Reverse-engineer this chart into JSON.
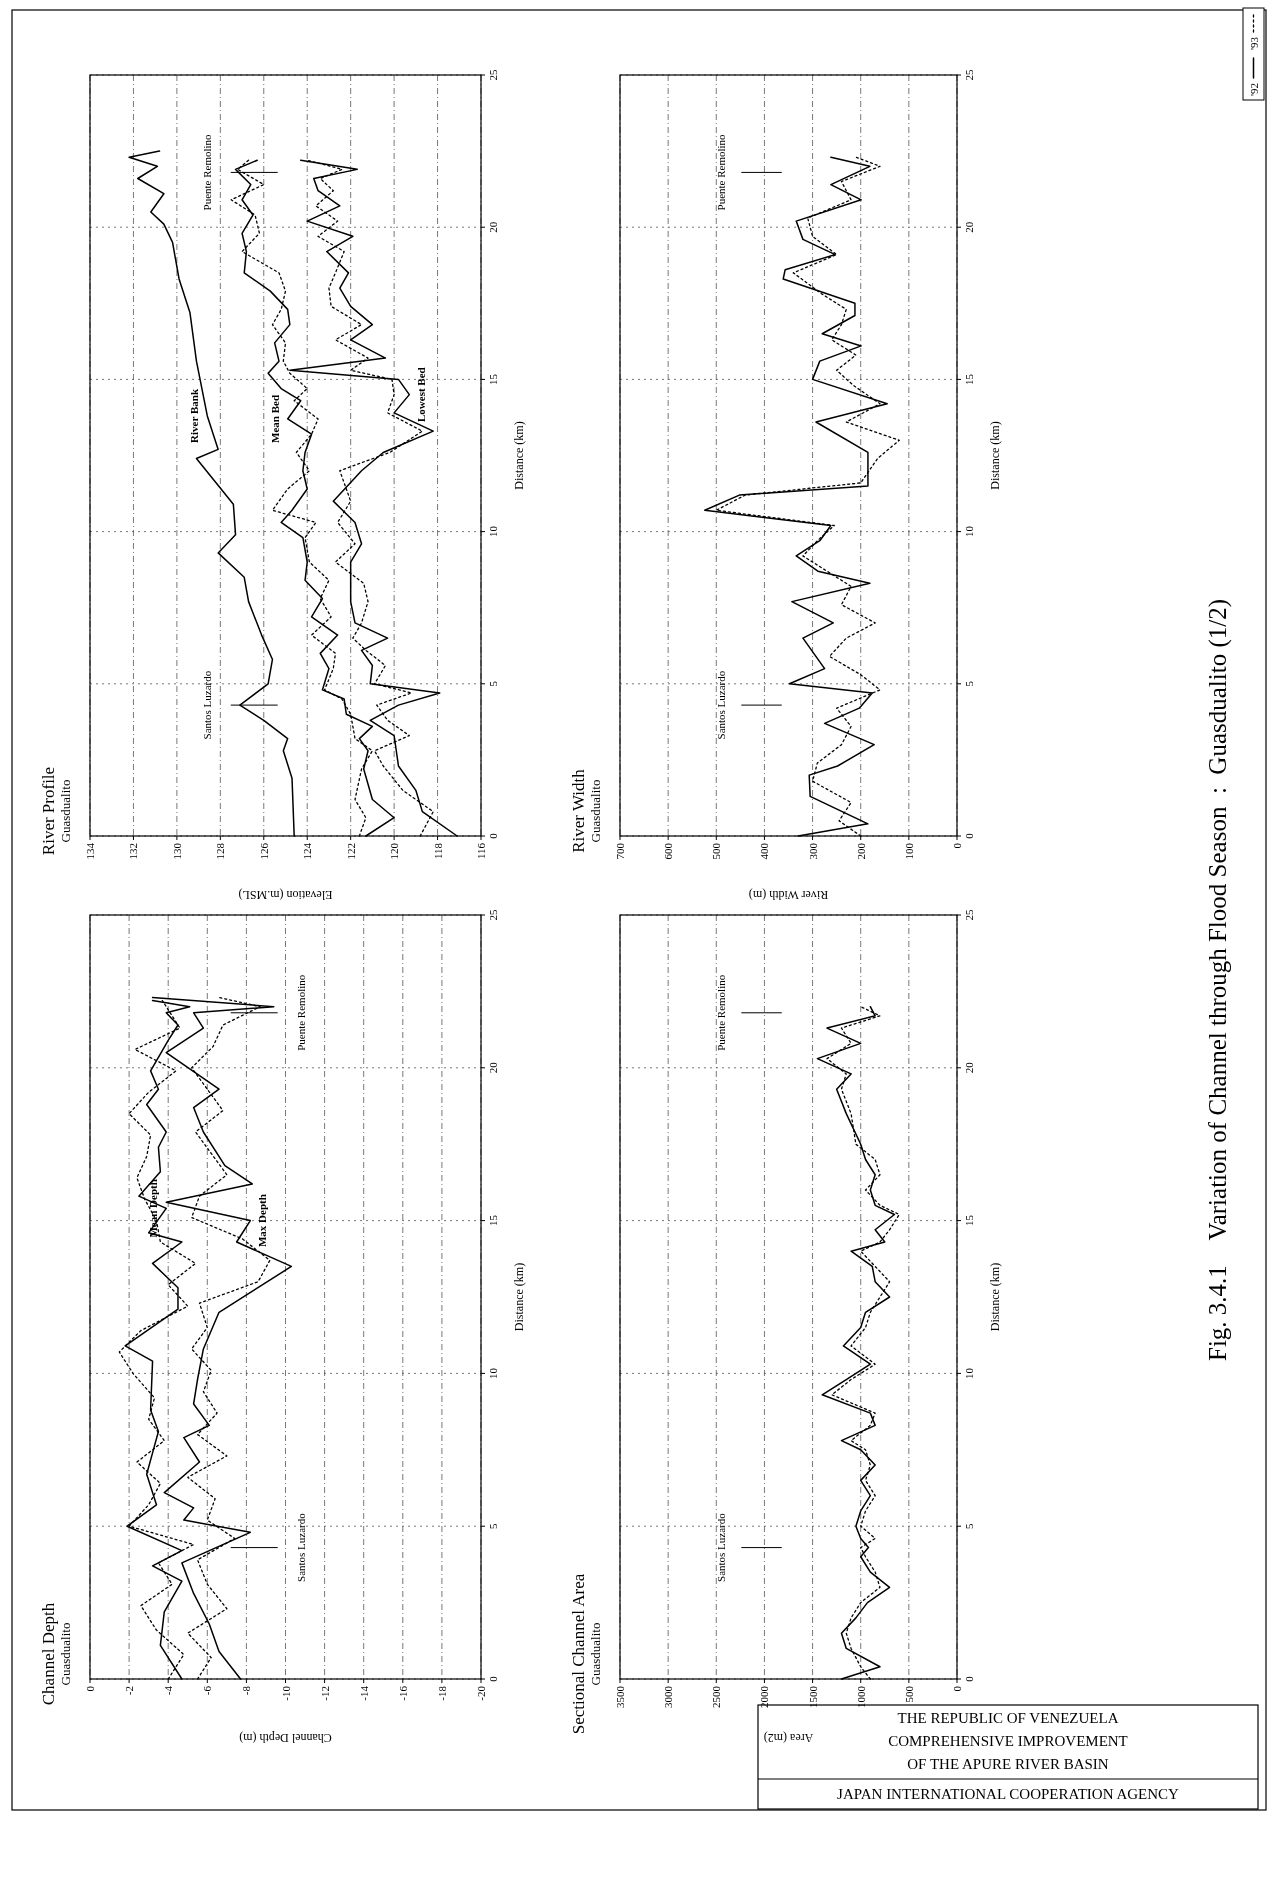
{
  "chart_data": [
    {
      "type": "line",
      "title": "River Profile",
      "subtitle": "Guasdualito",
      "ylabel": "Distance (km)",
      "xlabel": "Elevation (m.MSL)",
      "ylim": [
        0,
        25
      ],
      "yticks": [
        0,
        5,
        10,
        15,
        20,
        25
      ],
      "xlim": [
        134,
        116
      ],
      "xticks": [
        116,
        118,
        120,
        122,
        124,
        126,
        128,
        130,
        132,
        134
      ],
      "grid": true,
      "series": [
        {
          "name": "River Bank",
          "color": "#000000",
          "line_style": "solid",
          "values": [
            0,
            1.9,
            2.8,
            3.2,
            3.8,
            4.3,
            5,
            5.8,
            6.6,
            7.7,
            8.5,
            9.3,
            9.9,
            10.9,
            12.4,
            12.7,
            13.8,
            15.6,
            17.2,
            18.3,
            19.5,
            20.1,
            20.5,
            21.1,
            21.6,
            22,
            22.3,
            22.5
          ],
          "x": [
            124.6,
            124.7,
            125.1,
            124.9,
            126,
            127.1,
            125.8,
            125.6,
            126.1,
            126.7,
            126.9,
            128.1,
            127.3,
            127.4,
            129.1,
            128.1,
            128.6,
            129.1,
            129.4,
            129.9,
            130.2,
            130.6,
            131.2,
            130.6,
            131.8,
            130.9,
            132.2,
            130.8
          ]
        },
        {
          "name": "Mean Bed",
          "color": "#000000",
          "line_style": "solid",
          "values": [
            0,
            0.6,
            1.2,
            2.2,
            2.8,
            3.2,
            3.6,
            4.0,
            4.5,
            4.8,
            5.5,
            6.0,
            6.6,
            7.2,
            7.8,
            8.4,
            9.0,
            9.8,
            10.3,
            10.7,
            11.4,
            12,
            12.6,
            13.2,
            13.7,
            14.3,
            14.7,
            15.2,
            15.6,
            16.2,
            16.8,
            17.3,
            17.9,
            18.5,
            19.2,
            19.8,
            20.4,
            20.9,
            21.4,
            21.9,
            22.2
          ],
          "x": [
            121.3,
            120.0,
            121.0,
            121.4,
            121.2,
            121.6,
            121.0,
            122.2,
            122.3,
            123.3,
            123.0,
            123.4,
            122.6,
            123.8,
            123.3,
            124.1,
            124.0,
            124.2,
            125.2,
            124.7,
            124.0,
            124.2,
            124.1,
            123.8,
            124.9,
            124.3,
            125.2,
            125.8,
            125.3,
            125.5,
            124.8,
            124.9,
            125.7,
            126.9,
            126.8,
            127.0,
            126.5,
            127.0,
            126.6,
            127.3,
            126.3
          ]
        },
        {
          "color": "#000000",
          "line_style": "dotted",
          "values": [
            0,
            0.6,
            1.2,
            2.2,
            2.8,
            3.2,
            3.6,
            4.0,
            4.5,
            4.8,
            5.5,
            6.0,
            6.6,
            7.2,
            7.8,
            8.4,
            9.0,
            9.8,
            10.3,
            10.7,
            11.4,
            12,
            12.6,
            13.2,
            13.7,
            14.3,
            14.7,
            15.2,
            15.6,
            16.2,
            16.8,
            17.3,
            17.9,
            18.5,
            19.2,
            19.8,
            20.4,
            20.9,
            21.4,
            21.9,
            22.2
          ],
          "x": [
            121.6,
            121.3,
            121.8,
            121.5,
            121.0,
            121.8,
            121.9,
            122.0,
            122.4,
            123.2,
            122.8,
            122.7,
            123.8,
            122.9,
            123.4,
            123.0,
            123.9,
            124.1,
            123.6,
            125.6,
            124.9,
            123.9,
            124.5,
            123.8,
            123.5,
            124.6,
            124.0,
            124.8,
            125.1,
            125.0,
            125.6,
            125.2,
            125.0,
            125.3,
            127.0,
            126.2,
            126.4,
            127.5,
            126.0,
            127.2,
            126.7
          ]
        },
        {
          "name": "Lowest Bed",
          "color": "#000000",
          "line_style": "solid",
          "values": [
            0,
            0.8,
            1.5,
            2.3,
            2.8,
            3.3,
            3.8,
            4.3,
            4.7,
            5.0,
            5.6,
            6.1,
            6.5,
            7.0,
            7.7,
            8.3,
            9.0,
            9.6,
            10.3,
            11.0,
            12.0,
            12.6,
            13.3,
            13.9,
            14.5,
            15.0,
            15.3,
            15.7,
            16.3,
            16.8,
            17.4,
            18.0,
            18.5,
            19.2,
            19.7,
            20.2,
            20.7,
            21.2,
            21.6,
            21.9,
            22.2
          ],
          "x": [
            117.1,
            118.7,
            119.0,
            119.8,
            119.9,
            120.0,
            121.1,
            119.8,
            117.9,
            121.1,
            121.0,
            121.5,
            120.3,
            121.8,
            122.0,
            122.0,
            122.0,
            121.5,
            121.8,
            122.8,
            121.5,
            120.5,
            118.2,
            120.0,
            119.3,
            119.8,
            124.8,
            120.4,
            122.0,
            121.0,
            122.0,
            122.5,
            122.1,
            123.1,
            121.9,
            124.0,
            122.5,
            123.5,
            123.7,
            121.7,
            124.3
          ]
        },
        {
          "color": "#000000",
          "line_style": "dotted",
          "values": [
            0,
            0.8,
            1.5,
            2.3,
            2.8,
            3.3,
            3.8,
            4.3,
            4.7,
            5.0,
            5.6,
            6.1,
            6.5,
            7.0,
            7.7,
            8.3,
            9.0,
            9.6,
            10.3,
            11.0,
            12.0,
            12.6,
            13.3,
            13.9,
            14.5,
            15.0,
            15.3,
            15.7,
            16.3,
            16.8,
            17.4,
            18.0,
            18.5,
            19.2,
            19.7,
            20.2,
            20.7,
            21.2,
            21.6,
            21.9,
            22.2
          ],
          "x": [
            118.8,
            118.2,
            119.6,
            120.5,
            120.9,
            119.3,
            120.3,
            120.8,
            119.2,
            120.9,
            120.4,
            121.3,
            121.9,
            121.5,
            121.2,
            121.4,
            122.7,
            121.8,
            122.6,
            122.0,
            122.5,
            120.2,
            118.7,
            120.3,
            120.0,
            120.1,
            122.0,
            121.2,
            122.7,
            121.5,
            122.9,
            123.0,
            122.7,
            122.3,
            123.5,
            122.6,
            123.6,
            122.8,
            123.4,
            122.4,
            124.0
          ]
        }
      ],
      "ref_lines": [
        {
          "axis": "y",
          "value": 4.3,
          "label": "Santos Luzardo"
        },
        {
          "axis": "y",
          "value": 21.8,
          "label": "Puente Remolino"
        }
      ]
    },
    {
      "type": "line",
      "title": "River Width",
      "subtitle": "Guasdualito",
      "ylabel": "Distance (km)",
      "xlabel": "River Width (m)",
      "ylim": [
        0,
        25
      ],
      "yticks": [
        0,
        5,
        10,
        15,
        20,
        25
      ],
      "xlim": [
        700,
        0
      ],
      "xticks": [
        0,
        100,
        200,
        300,
        400,
        500,
        600,
        700
      ],
      "grid": true,
      "legend": "top right",
      "series": [
        {
          "name": "'92",
          "color": "#000000",
          "line_style": "solid",
          "values": [
            0,
            0.4,
            1.3,
            2.0,
            2.3,
            3.0,
            3.7,
            4.2,
            4.7,
            5.0,
            5.5,
            6.5,
            7.0,
            7.7,
            8.3,
            8.7,
            9.2,
            9.7,
            10.2,
            10.7,
            11.2,
            11.5,
            12.6,
            13.6,
            14.2,
            15.0,
            15.6,
            16.1,
            16.5,
            17.1,
            17.5,
            18.3,
            18.6,
            19.1,
            19.6,
            20.2,
            20.9,
            21.4,
            22.0,
            22.3
          ],
          "x": [
            330,
            185,
            305,
            307,
            248,
            172,
            275,
            203,
            176,
            348,
            275,
            320,
            257,
            343,
            181,
            289,
            334,
            285,
            262,
            524,
            452,
            185,
            185,
            293,
            145,
            300,
            285,
            199,
            280,
            212,
            212,
            361,
            357,
            253,
            320,
            334,
            199,
            262,
            181,
            262
          ]
        },
        {
          "name": "'93",
          "color": "#000000",
          "line_style": "dotted",
          "values": [
            0,
            0.5,
            1.1,
            1.8,
            2.4,
            3.0,
            3.6,
            4.2,
            4.8,
            5.3,
            5.9,
            6.5,
            7.0,
            7.6,
            8.2,
            8.7,
            9.2,
            9.7,
            10.2,
            10.7,
            11.2,
            11.6,
            12.4,
            13.0,
            13.6,
            14.2,
            14.8,
            15.3,
            15.8,
            16.3,
            16.8,
            17.3,
            17.8,
            18.5,
            19.1,
            19.7,
            20.3,
            20.9,
            21.5,
            22.0,
            22.3
          ],
          "x": [
            200,
            245,
            220,
            300,
            290,
            240,
            220,
            250,
            160,
            200,
            265,
            230,
            170,
            240,
            220,
            270,
            320,
            290,
            255,
            500,
            440,
            200,
            165,
            120,
            230,
            160,
            215,
            250,
            210,
            260,
            240,
            230,
            280,
            340,
            250,
            300,
            310,
            220,
            240,
            160,
            210
          ]
        }
      ],
      "ref_lines": [
        {
          "axis": "y",
          "value": 4.3,
          "label": "Santos Luzardo"
        },
        {
          "axis": "y",
          "value": 21.8,
          "label": "Puente Remolino"
        }
      ]
    },
    {
      "type": "line",
      "title": "Channel Depth",
      "subtitle": "Guasdualito",
      "ylabel": "Distance (km)",
      "xlabel": "Channel Depth (m)",
      "ylim": [
        0,
        25
      ],
      "yticks": [
        0,
        5,
        10,
        15,
        20,
        25
      ],
      "xlim": [
        0,
        -20
      ],
      "xticks": [
        -20,
        -18,
        -16,
        -14,
        -12,
        -10,
        -8,
        -6,
        -4,
        -2,
        0
      ],
      "grid": true,
      "series": [
        {
          "name": "Mean Depth",
          "color": "#000000",
          "line_style": "solid",
          "values": [
            0,
            1.1,
            2.2,
            3.2,
            3.7,
            4.2,
            5,
            5.7,
            6.7,
            7.4,
            8.1,
            8.8,
            10.4,
            10.9,
            12.1,
            12.8,
            13.6,
            14.3,
            14.6,
            15.4,
            15.8,
            16.6,
            17.4,
            17.9,
            18.8,
            19.3,
            19.9,
            20.9,
            21.4,
            21.8,
            22.0,
            22.2
          ],
          "x": [
            -4.7,
            -3.6,
            -3.8,
            -4.7,
            -3.2,
            -4.7,
            -1.9,
            -3.4,
            -2.9,
            -3.2,
            -3.5,
            -3.1,
            -3.2,
            -1.8,
            -4.5,
            -4.5,
            -3.2,
            -4.7,
            -3.0,
            -3.9,
            -2.5,
            -3.6,
            -3.5,
            -3.9,
            -2.9,
            -3.5,
            -3.1,
            -4.0,
            -4.5,
            -3.9,
            -5.1,
            -3.2
          ]
        },
        {
          "color": "#000000",
          "line_style": "dotted",
          "values": [
            0,
            0.8,
            1.6,
            2.4,
            3.1,
            3.8,
            4.4,
            5.0,
            5.7,
            6.4,
            7.1,
            7.8,
            8.5,
            9.2,
            10.0,
            10.7,
            11.4,
            12.2,
            12.9,
            13.6,
            14.3,
            15.0,
            15.7,
            16.4,
            17.1,
            17.8,
            18.5,
            19.2,
            19.9,
            20.6,
            21.3,
            21.8,
            22.2
          ],
          "x": [
            -4.0,
            -4.8,
            -3.4,
            -2.6,
            -4.2,
            -3.5,
            -5.3,
            -2.0,
            -3.0,
            -3.6,
            -2.4,
            -3.8,
            -3.0,
            -3.3,
            -2.2,
            -1.5,
            -2.6,
            -5.0,
            -4.0,
            -5.4,
            -3.6,
            -3.4,
            -2.8,
            -2.4,
            -2.9,
            -3.1,
            -2.0,
            -3.0,
            -4.4,
            -2.3,
            -4.6,
            -4.1,
            -3.7
          ]
        },
        {
          "name": "Max Depth",
          "color": "#000000",
          "line_style": "solid",
          "values": [
            0,
            0.9,
            1.8,
            2.8,
            3.8,
            4.8,
            5.2,
            5.6,
            6.1,
            7.1,
            7.9,
            8.3,
            9.0,
            9.8,
            10.8,
            12.0,
            13.5,
            14.3,
            15.0,
            15.6,
            16.2,
            16.8,
            17.9,
            18.7,
            19.3,
            20.5,
            21.3,
            21.8,
            22.0,
            22.3
          ],
          "x": [
            -7.7,
            -6.6,
            -6.1,
            -5.3,
            -4.7,
            -8.2,
            -4.8,
            -5.3,
            -3.8,
            -5.6,
            -4.8,
            -6.1,
            -5.3,
            -5.5,
            -5.8,
            -6.6,
            -10.3,
            -7.5,
            -8.2,
            -3.9,
            -8.3,
            -6.9,
            -5.8,
            -5.3,
            -6.6,
            -3.9,
            -5.8,
            -5.3,
            -9.4,
            -3.2
          ]
        },
        {
          "color": "#000000",
          "line_style": "dotted",
          "values": [
            0,
            0.7,
            1.5,
            2.3,
            3.1,
            3.9,
            4.6,
            5.2,
            5.9,
            6.6,
            7.3,
            8.0,
            8.7,
            9.4,
            10.1,
            10.8,
            11.5,
            12.3,
            13.0,
            13.7,
            14.4,
            15.1,
            15.8,
            16.5,
            17.2,
            17.9,
            18.6,
            19.3,
            20.0,
            20.7,
            21.4,
            22.0,
            22.3
          ],
          "x": [
            -5.5,
            -6.2,
            -5.0,
            -7.0,
            -6.0,
            -5.5,
            -7.4,
            -6.0,
            -6.4,
            -5.0,
            -7.0,
            -5.5,
            -6.5,
            -5.8,
            -6.2,
            -5.2,
            -6.0,
            -5.6,
            -8.6,
            -9.2,
            -7.8,
            -5.2,
            -5.6,
            -7.0,
            -6.2,
            -5.4,
            -6.8,
            -6.0,
            -5.2,
            -6.3,
            -6.8,
            -8.7,
            -6.6
          ]
        }
      ],
      "ref_lines": [
        {
          "axis": "y",
          "value": 4.3,
          "label": "Santos Luzardo"
        },
        {
          "axis": "y",
          "value": 21.8,
          "label": "Puente Remolino"
        }
      ]
    },
    {
      "type": "line",
      "title": "Sectional Channel Area",
      "subtitle": "Guasdualito",
      "ylabel": "Distance (km)",
      "xlabel": "Area (m2)",
      "ylim": [
        0,
        25
      ],
      "yticks": [
        0,
        5,
        10,
        15,
        20,
        25
      ],
      "xlim": [
        3500,
        0
      ],
      "xticks": [
        0,
        500,
        1000,
        1500,
        2000,
        2500,
        3000,
        3500
      ],
      "grid": true,
      "series": [
        {
          "color": "#000000",
          "line_style": "solid",
          "values": [
            0,
            0.4,
            1,
            1.5,
            2,
            2.5,
            3,
            3.5,
            4,
            4.3,
            4.6,
            5,
            5.5,
            6,
            6.5,
            7,
            7.5,
            7.8,
            8.3,
            8.7,
            9.3,
            9.8,
            10.3,
            10.9,
            11.5,
            12,
            12.5,
            13,
            13.5,
            14,
            14.3,
            14.7,
            15.2,
            15.5,
            16,
            16.5,
            17,
            17.5,
            18.5,
            19.3,
            19.8,
            20.3,
            20.8,
            21.3,
            21.7,
            22
          ],
          "x": [
            1200,
            800,
            1150,
            1200,
            1050,
            930,
            700,
            900,
            1000,
            920,
            1000,
            1050,
            1000,
            900,
            1000,
            850,
            1000,
            1200,
            850,
            900,
            1400,
            1150,
            900,
            1180,
            1000,
            950,
            700,
            850,
            880,
            1100,
            750,
            850,
            650,
            850,
            900,
            850,
            950,
            1000,
            1150,
            1250,
            1100,
            1450,
            1000,
            1350,
            850,
            900
          ]
        },
        {
          "color": "#000000",
          "line_style": "dotted",
          "values": [
            0,
            0.4,
            1,
            1.5,
            2,
            2.5,
            3,
            3.5,
            4,
            4.3,
            4.6,
            5,
            5.5,
            6,
            6.5,
            7,
            7.5,
            7.8,
            8.3,
            8.7,
            9.3,
            9.8,
            10.3,
            10.9,
            11.5,
            12,
            12.5,
            13,
            13.5,
            14,
            14.3,
            14.7,
            15.2,
            15.5,
            16,
            16.5,
            17,
            17.5,
            18.5,
            19.3,
            19.8,
            20.3,
            20.8,
            21.3,
            21.7,
            22
          ],
          "x": [
            900,
            1000,
            1100,
            1150,
            1100,
            1000,
            800,
            850,
            950,
            1000,
            850,
            1000,
            950,
            850,
            950,
            900,
            950,
            1100,
            900,
            850,
            1300,
            1100,
            850,
            1100,
            950,
            900,
            800,
            700,
            850,
            1000,
            800,
            700,
            600,
            800,
            950,
            800,
            850,
            1050,
            1100,
            1200,
            1150,
            1350,
            1100,
            1200,
            800,
            1000
          ]
        }
      ],
      "ref_lines": [
        {
          "axis": "y",
          "value": 4.3,
          "label": "Santos Luzardo"
        },
        {
          "axis": "y",
          "value": 21.8,
          "label": "Puente Remolino"
        }
      ]
    },
    {
      "type": "other",
      "title": "Fig. 3.4.1    Variation of Channel through Flood Season  :  Guasdualito (1/2)",
      "annotations": [
        "THE REPUBLIC OF VENEZUELA",
        "COMPREHENSIVE IMPROVEMENT",
        "OF THE APURE RIVER BASIN",
        "JAPAN INTERNATIONAL COOPERATION AGENCY"
      ]
    }
  ]
}
